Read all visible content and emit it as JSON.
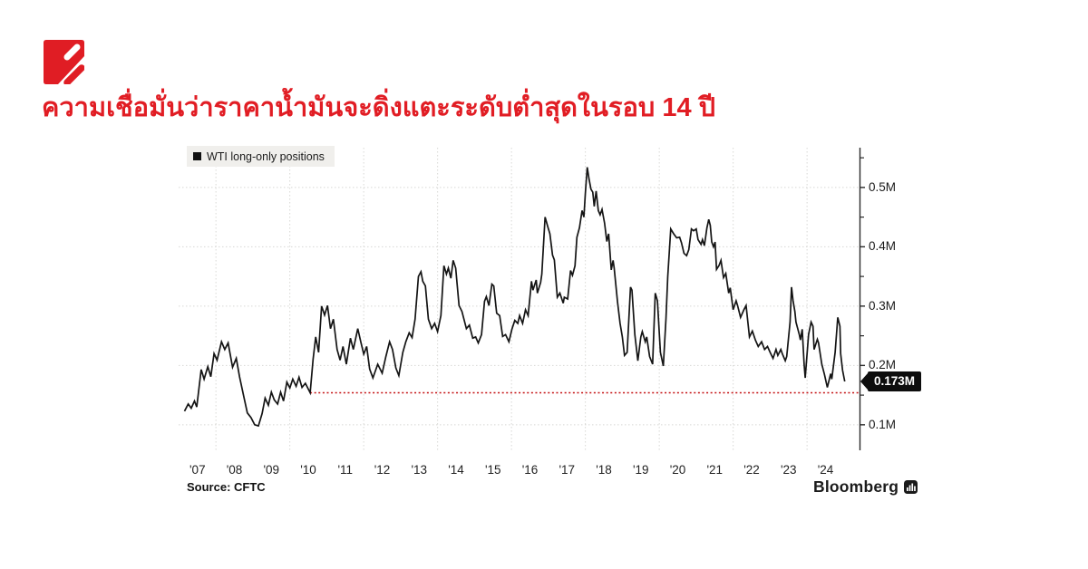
{
  "headline": {
    "text": "ความเชื่อมั่นว่าราคาน้ำมันจะดิ่งแตะระดับต่ำสุดในรอบ 14 ปี",
    "color": "#e11d24"
  },
  "brand": {
    "logo_color": "#e01d24"
  },
  "chart": {
    "legend": {
      "label": "WTI long-only positions",
      "swatch_color": "#111111"
    },
    "source": "Source: CFTC",
    "credit": "Bloomberg",
    "callout": {
      "label": "0.173M",
      "value": 0.173
    }
  },
  "chart_data": {
    "type": "line",
    "title": "",
    "xlabel": "",
    "ylabel": "",
    "legend_position": "top-left",
    "grid": true,
    "xlim": [
      2006.99,
      2025.42
    ],
    "ylim": [
      0.057,
      0.567
    ],
    "y_ticks": [
      {
        "value": 0.1,
        "label": "0.1M"
      },
      {
        "value": 0.2,
        "label": "0.2M"
      },
      {
        "value": 0.3,
        "label": "0.3M"
      },
      {
        "value": 0.4,
        "label": "0.4M"
      },
      {
        "value": 0.5,
        "label": "0.5M"
      }
    ],
    "y_minor_ticks": [
      0.15,
      0.25,
      0.35,
      0.45,
      0.55
    ],
    "x_ticks": [
      {
        "year": 2007,
        "label": "'07"
      },
      {
        "year": 2008,
        "label": "'08"
      },
      {
        "year": 2009,
        "label": "'09"
      },
      {
        "year": 2010,
        "label": "'10"
      },
      {
        "year": 2011,
        "label": "'11"
      },
      {
        "year": 2012,
        "label": "'12"
      },
      {
        "year": 2013,
        "label": "'13"
      },
      {
        "year": 2014,
        "label": "'14"
      },
      {
        "year": 2015,
        "label": "'15"
      },
      {
        "year": 2016,
        "label": "'16"
      },
      {
        "year": 2017,
        "label": "'17"
      },
      {
        "year": 2018,
        "label": "'18"
      },
      {
        "year": 2019,
        "label": "'19"
      },
      {
        "year": 2020,
        "label": "'20"
      },
      {
        "year": 2021,
        "label": "'21"
      },
      {
        "year": 2022,
        "label": "'22"
      },
      {
        "year": 2023,
        "label": "'23"
      },
      {
        "year": 2024,
        "label": "'24"
      }
    ],
    "x_gridlines": [
      2008,
      2010,
      2012,
      2014,
      2016,
      2018,
      2020,
      2022,
      2024
    ],
    "grid_color": "#d8d8d5",
    "axis_color": "#2a2a2a",
    "ref_line": {
      "value": 0.154,
      "from_x": 2010.55,
      "color": "#c40f11"
    },
    "series": [
      {
        "name": "WTI long-only positions",
        "color": "#141414",
        "unit": "millions of contracts",
        "points": [
          [
            2007.15,
            0.123
          ],
          [
            2007.25,
            0.135
          ],
          [
            2007.33,
            0.128
          ],
          [
            2007.42,
            0.14
          ],
          [
            2007.48,
            0.13
          ],
          [
            2007.6,
            0.193
          ],
          [
            2007.68,
            0.177
          ],
          [
            2007.78,
            0.198
          ],
          [
            2007.86,
            0.181
          ],
          [
            2007.95,
            0.22
          ],
          [
            2008.03,
            0.209
          ],
          [
            2008.15,
            0.24
          ],
          [
            2008.24,
            0.227
          ],
          [
            2008.33,
            0.238
          ],
          [
            2008.45,
            0.197
          ],
          [
            2008.55,
            0.212
          ],
          [
            2008.64,
            0.181
          ],
          [
            2008.76,
            0.146
          ],
          [
            2008.85,
            0.12
          ],
          [
            2008.95,
            0.112
          ],
          [
            2009.05,
            0.1
          ],
          [
            2009.15,
            0.098
          ],
          [
            2009.25,
            0.119
          ],
          [
            2009.33,
            0.145
          ],
          [
            2009.42,
            0.133
          ],
          [
            2009.5,
            0.155
          ],
          [
            2009.58,
            0.142
          ],
          [
            2009.67,
            0.135
          ],
          [
            2009.75,
            0.155
          ],
          [
            2009.83,
            0.14
          ],
          [
            2009.92,
            0.172
          ],
          [
            2010.0,
            0.162
          ],
          [
            2010.08,
            0.177
          ],
          [
            2010.17,
            0.165
          ],
          [
            2010.25,
            0.18
          ],
          [
            2010.33,
            0.163
          ],
          [
            2010.42,
            0.17
          ],
          [
            2010.55,
            0.154
          ],
          [
            2010.63,
            0.21
          ],
          [
            2010.7,
            0.248
          ],
          [
            2010.78,
            0.222
          ],
          [
            2010.86,
            0.3
          ],
          [
            2010.94,
            0.285
          ],
          [
            2011.02,
            0.301
          ],
          [
            2011.1,
            0.262
          ],
          [
            2011.18,
            0.278
          ],
          [
            2011.28,
            0.227
          ],
          [
            2011.36,
            0.209
          ],
          [
            2011.44,
            0.232
          ],
          [
            2011.53,
            0.202
          ],
          [
            2011.64,
            0.246
          ],
          [
            2011.72,
            0.227
          ],
          [
            2011.84,
            0.262
          ],
          [
            2011.92,
            0.24
          ],
          [
            2012.0,
            0.219
          ],
          [
            2012.08,
            0.232
          ],
          [
            2012.16,
            0.194
          ],
          [
            2012.25,
            0.179
          ],
          [
            2012.38,
            0.202
          ],
          [
            2012.5,
            0.187
          ],
          [
            2012.6,
            0.215
          ],
          [
            2012.7,
            0.24
          ],
          [
            2012.78,
            0.227
          ],
          [
            2012.87,
            0.196
          ],
          [
            2012.95,
            0.183
          ],
          [
            2013.06,
            0.222
          ],
          [
            2013.14,
            0.24
          ],
          [
            2013.23,
            0.255
          ],
          [
            2013.31,
            0.247
          ],
          [
            2013.39,
            0.278
          ],
          [
            2013.48,
            0.35
          ],
          [
            2013.55,
            0.358
          ],
          [
            2013.6,
            0.342
          ],
          [
            2013.67,
            0.334
          ],
          [
            2013.75,
            0.278
          ],
          [
            2013.84,
            0.262
          ],
          [
            2013.92,
            0.271
          ],
          [
            2014.0,
            0.257
          ],
          [
            2014.09,
            0.284
          ],
          [
            2014.17,
            0.368
          ],
          [
            2014.24,
            0.354
          ],
          [
            2014.29,
            0.364
          ],
          [
            2014.36,
            0.347
          ],
          [
            2014.42,
            0.377
          ],
          [
            2014.49,
            0.364
          ],
          [
            2014.58,
            0.301
          ],
          [
            2014.66,
            0.291
          ],
          [
            2014.78,
            0.262
          ],
          [
            2014.86,
            0.268
          ],
          [
            2014.95,
            0.246
          ],
          [
            2015.03,
            0.248
          ],
          [
            2015.1,
            0.238
          ],
          [
            2015.19,
            0.252
          ],
          [
            2015.27,
            0.308
          ],
          [
            2015.32,
            0.316
          ],
          [
            2015.39,
            0.301
          ],
          [
            2015.47,
            0.337
          ],
          [
            2015.52,
            0.334
          ],
          [
            2015.6,
            0.288
          ],
          [
            2015.68,
            0.284
          ],
          [
            2015.76,
            0.249
          ],
          [
            2015.84,
            0.252
          ],
          [
            2015.93,
            0.24
          ],
          [
            2016.01,
            0.261
          ],
          [
            2016.09,
            0.276
          ],
          [
            2016.17,
            0.271
          ],
          [
            2016.22,
            0.284
          ],
          [
            2016.3,
            0.271
          ],
          [
            2016.38,
            0.294
          ],
          [
            2016.45,
            0.284
          ],
          [
            2016.54,
            0.342
          ],
          [
            2016.58,
            0.327
          ],
          [
            2016.67,
            0.344
          ],
          [
            2016.7,
            0.322
          ],
          [
            2016.79,
            0.34
          ],
          [
            2016.82,
            0.354
          ],
          [
            2016.91,
            0.45
          ],
          [
            2016.99,
            0.432
          ],
          [
            2017.04,
            0.422
          ],
          [
            2017.11,
            0.386
          ],
          [
            2017.16,
            0.378
          ],
          [
            2017.24,
            0.315
          ],
          [
            2017.31,
            0.322
          ],
          [
            2017.4,
            0.305
          ],
          [
            2017.43,
            0.315
          ],
          [
            2017.52,
            0.312
          ],
          [
            2017.6,
            0.36
          ],
          [
            2017.65,
            0.352
          ],
          [
            2017.72,
            0.368
          ],
          [
            2017.77,
            0.416
          ],
          [
            2017.84,
            0.432
          ],
          [
            2017.91,
            0.461
          ],
          [
            2017.96,
            0.45
          ],
          [
            2018.0,
            0.49
          ],
          [
            2018.05,
            0.534
          ],
          [
            2018.1,
            0.514
          ],
          [
            2018.15,
            0.497
          ],
          [
            2018.2,
            0.492
          ],
          [
            2018.24,
            0.468
          ],
          [
            2018.29,
            0.494
          ],
          [
            2018.35,
            0.461
          ],
          [
            2018.4,
            0.454
          ],
          [
            2018.45,
            0.463
          ],
          [
            2018.52,
            0.44
          ],
          [
            2018.58,
            0.409
          ],
          [
            2018.63,
            0.422
          ],
          [
            2018.7,
            0.361
          ],
          [
            2018.75,
            0.377
          ],
          [
            2018.78,
            0.364
          ],
          [
            2018.87,
            0.307
          ],
          [
            2018.94,
            0.271
          ],
          [
            2019.0,
            0.248
          ],
          [
            2019.06,
            0.217
          ],
          [
            2019.13,
            0.222
          ],
          [
            2019.22,
            0.332
          ],
          [
            2019.26,
            0.327
          ],
          [
            2019.34,
            0.252
          ],
          [
            2019.42,
            0.208
          ],
          [
            2019.5,
            0.248
          ],
          [
            2019.54,
            0.257
          ],
          [
            2019.62,
            0.24
          ],
          [
            2019.66,
            0.248
          ],
          [
            2019.74,
            0.215
          ],
          [
            2019.82,
            0.202
          ],
          [
            2019.89,
            0.322
          ],
          [
            2019.95,
            0.309
          ],
          [
            2020.03,
            0.222
          ],
          [
            2020.11,
            0.199
          ],
          [
            2020.18,
            0.278
          ],
          [
            2020.23,
            0.35
          ],
          [
            2020.31,
            0.43
          ],
          [
            2020.39,
            0.422
          ],
          [
            2020.47,
            0.415
          ],
          [
            2020.55,
            0.416
          ],
          [
            2020.6,
            0.407
          ],
          [
            2020.67,
            0.389
          ],
          [
            2020.74,
            0.385
          ],
          [
            2020.8,
            0.395
          ],
          [
            2020.87,
            0.43
          ],
          [
            2020.93,
            0.427
          ],
          [
            2021.0,
            0.43
          ],
          [
            2021.05,
            0.412
          ],
          [
            2021.13,
            0.404
          ],
          [
            2021.17,
            0.412
          ],
          [
            2021.22,
            0.402
          ],
          [
            2021.29,
            0.432
          ],
          [
            2021.34,
            0.446
          ],
          [
            2021.38,
            0.436
          ],
          [
            2021.42,
            0.408
          ],
          [
            2021.47,
            0.4
          ],
          [
            2021.51,
            0.408
          ],
          [
            2021.55,
            0.362
          ],
          [
            2021.62,
            0.369
          ],
          [
            2021.67,
            0.377
          ],
          [
            2021.74,
            0.348
          ],
          [
            2021.8,
            0.355
          ],
          [
            2021.88,
            0.322
          ],
          [
            2021.92,
            0.331
          ],
          [
            2022.0,
            0.294
          ],
          [
            2022.08,
            0.309
          ],
          [
            2022.12,
            0.301
          ],
          [
            2022.2,
            0.281
          ],
          [
            2022.29,
            0.294
          ],
          [
            2022.35,
            0.301
          ],
          [
            2022.44,
            0.248
          ],
          [
            2022.52,
            0.258
          ],
          [
            2022.6,
            0.243
          ],
          [
            2022.68,
            0.232
          ],
          [
            2022.77,
            0.24
          ],
          [
            2022.85,
            0.227
          ],
          [
            2022.93,
            0.232
          ],
          [
            2023.0,
            0.222
          ],
          [
            2023.08,
            0.212
          ],
          [
            2023.16,
            0.227
          ],
          [
            2023.21,
            0.217
          ],
          [
            2023.29,
            0.227
          ],
          [
            2023.33,
            0.22
          ],
          [
            2023.41,
            0.208
          ],
          [
            2023.45,
            0.215
          ],
          [
            2023.54,
            0.273
          ],
          [
            2023.58,
            0.332
          ],
          [
            2023.62,
            0.309
          ],
          [
            2023.67,
            0.291
          ],
          [
            2023.7,
            0.273
          ],
          [
            2023.79,
            0.252
          ],
          [
            2023.82,
            0.243
          ],
          [
            2023.87,
            0.261
          ],
          [
            2023.92,
            0.202
          ],
          [
            2023.95,
            0.179
          ],
          [
            2024.04,
            0.252
          ],
          [
            2024.11,
            0.273
          ],
          [
            2024.16,
            0.266
          ],
          [
            2024.19,
            0.227
          ],
          [
            2024.28,
            0.244
          ],
          [
            2024.31,
            0.238
          ],
          [
            2024.4,
            0.202
          ],
          [
            2024.47,
            0.185
          ],
          [
            2024.55,
            0.163
          ],
          [
            2024.64,
            0.186
          ],
          [
            2024.67,
            0.177
          ],
          [
            2024.76,
            0.222
          ],
          [
            2024.83,
            0.281
          ],
          [
            2024.89,
            0.266
          ],
          [
            2024.91,
            0.22
          ],
          [
            2024.96,
            0.192
          ],
          [
            2025.02,
            0.173
          ]
        ]
      }
    ]
  }
}
